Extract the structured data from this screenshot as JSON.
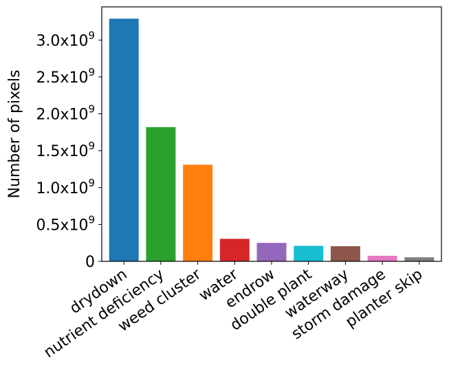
{
  "chart_data": {
    "type": "bar",
    "title": "",
    "xlabel": "",
    "ylabel": "Number of pixels",
    "ylim": [
      0,
      3450000000
    ],
    "grid": false,
    "legend": "none",
    "categories": [
      "drydown",
      "nutrient deficiency",
      "weed cluster",
      "water",
      "endrow",
      "double plant",
      "waterway",
      "storm damage",
      "planter skip"
    ],
    "values": [
      3290000000,
      1820000000,
      1310000000,
      305000000,
      250000000,
      210000000,
      205000000,
      75000000,
      55000000
    ],
    "colors": [
      "#1f77b4",
      "#2ca02c",
      "#ff7f0e",
      "#d62728",
      "#9467bd",
      "#17becf",
      "#8c564b",
      "#e377c2",
      "#7f7f7f"
    ],
    "yticks": [
      {
        "value": 0,
        "mantissa": "0",
        "exp": ""
      },
      {
        "value": 500000000,
        "mantissa": "0.5x10",
        "exp": "9"
      },
      {
        "value": 1000000000,
        "mantissa": "1.0x10",
        "exp": "9"
      },
      {
        "value": 1500000000,
        "mantissa": "1.5x10",
        "exp": "9"
      },
      {
        "value": 2000000000,
        "mantissa": "2.0x10",
        "exp": "9"
      },
      {
        "value": 2500000000,
        "mantissa": "2.5x10",
        "exp": "9"
      },
      {
        "value": 3000000000,
        "mantissa": "3.0x10",
        "exp": "9"
      }
    ]
  }
}
